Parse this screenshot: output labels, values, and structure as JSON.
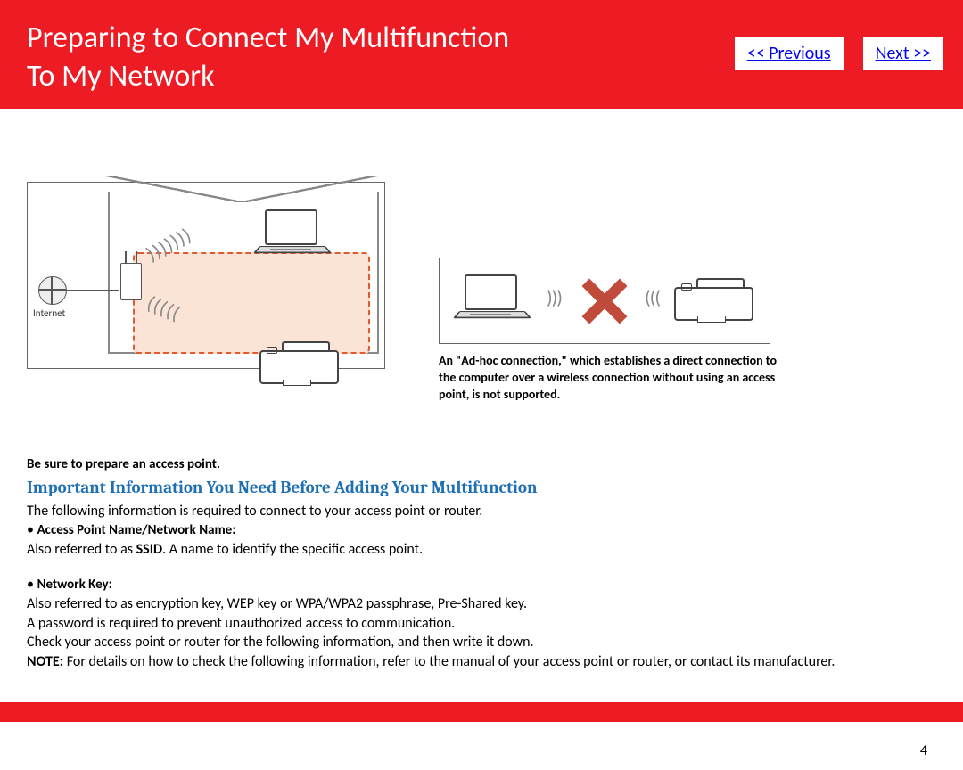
{
  "header": {
    "title_line1": "Preparing to Connect My Multifunction",
    "title_line2": "To My Network",
    "prev_label": "<< Previous",
    "next_label": "Next >>"
  },
  "diagram1": {
    "internet_label": "Internet"
  },
  "diagram2": {
    "caption": "An \"Ad-hoc connection,\" which establishes a direct connection to the computer over a wireless connection without using an access point, is not supported."
  },
  "body": {
    "prepare": "Be sure to prepare an access point.",
    "section_title": "Important Information You Need Before Adding Your Multifunction",
    "intro": "The following information is required to connect to your access point or router.",
    "bullet1_label": "Access Point Name/Network Name:",
    "bullet1_text_a": "Also referred to as ",
    "bullet1_ssid": "SSID",
    "bullet1_text_b": ". A name to identify the specific access point.",
    "bullet2_label": "Network Key:",
    "bullet2_line1": "Also referred to as encryption key, WEP key or WPA/WPA2 passphrase, Pre-Shared key.",
    "bullet2_line2": "A password is required to prevent unauthorized access to communication.",
    "check_line": "Check your access point or router for the following information, and then write it down.",
    "note_label": "NOTE:",
    "note_text": "  For details on how to check the following information, refer to the manual of your access point or router, or contact its manufacturer."
  },
  "page_number": "4",
  "colors": {
    "brand_red": "#ed1c24",
    "link_blue": "#0000ee",
    "heading_blue": "#1f6fb5",
    "zone_fill": "#fbe3d6",
    "zone_border": "#e05a2b",
    "cross": "#c14b3a"
  }
}
